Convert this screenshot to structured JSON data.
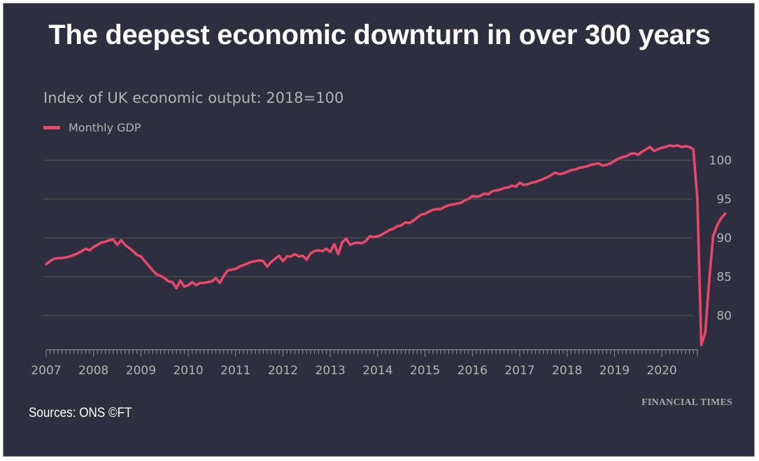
{
  "page": {
    "headline": "The deepest economic downturn in over 300 years",
    "source": "Sources: ONS ©FT",
    "brand": "FINANCIAL TIMES"
  },
  "chart_data": {
    "type": "line",
    "title": "Index of UK economic output: 2018=100",
    "xlabel": "",
    "ylabel": "",
    "legend": {
      "position": "top-left",
      "entries": [
        "Monthly GDP"
      ]
    },
    "colors": {
      "background": "#2e2e41",
      "line": "#e8486a",
      "grid": "#4a5250",
      "text": "#b3b3b6"
    },
    "grid": true,
    "x_start": "2007-01",
    "x_frequency": "monthly",
    "x_ticks": [
      "2007",
      "2008",
      "2009",
      "2010",
      "2011",
      "2012",
      "2013",
      "2014",
      "2015",
      "2016",
      "2017",
      "2018",
      "2019",
      "2020"
    ],
    "y_ticks": [
      "80",
      "85",
      "90",
      "95",
      "100"
    ],
    "ylim": [
      76,
      103
    ],
    "xlim": [
      "2007-01",
      "2020-10"
    ],
    "series": [
      {
        "name": "Monthly GDP",
        "values": [
          86.6,
          87.0,
          87.3,
          87.4,
          87.4,
          87.5,
          87.6,
          87.8,
          88.0,
          88.3,
          88.6,
          88.4,
          88.8,
          89.1,
          89.4,
          89.5,
          89.7,
          89.8,
          89.1,
          89.7,
          89.1,
          88.7,
          88.3,
          87.8,
          87.6,
          87.0,
          86.4,
          85.8,
          85.3,
          85.1,
          84.8,
          84.4,
          84.3,
          83.5,
          84.5,
          83.7,
          83.9,
          84.3,
          83.9,
          84.2,
          84.2,
          84.3,
          84.4,
          84.8,
          84.2,
          85.1,
          85.8,
          85.9,
          86.0,
          86.3,
          86.5,
          86.7,
          86.9,
          87.0,
          87.1,
          87.0,
          86.3,
          86.9,
          87.3,
          87.7,
          87.0,
          87.6,
          87.6,
          87.9,
          87.6,
          87.7,
          87.2,
          88.0,
          88.3,
          88.4,
          88.3,
          88.6,
          88.2,
          89.2,
          87.9,
          89.4,
          89.9,
          89.1,
          89.3,
          89.4,
          89.3,
          89.6,
          90.2,
          90.1,
          90.2,
          90.4,
          90.7,
          91.0,
          91.2,
          91.5,
          91.6,
          92.0,
          91.9,
          92.2,
          92.6,
          93.0,
          93.1,
          93.4,
          93.6,
          93.7,
          93.7,
          94.0,
          94.2,
          94.3,
          94.4,
          94.5,
          94.8,
          95.0,
          95.4,
          95.3,
          95.4,
          95.7,
          95.6,
          96.0,
          96.1,
          96.2,
          96.4,
          96.5,
          96.7,
          96.6,
          97.1,
          96.8,
          96.9,
          97.1,
          97.2,
          97.4,
          97.6,
          97.8,
          98.1,
          98.4,
          98.2,
          98.3,
          98.5,
          98.7,
          98.8,
          99.0,
          99.1,
          99.2,
          99.4,
          99.5,
          99.6,
          99.3,
          99.4,
          99.6,
          99.9,
          100.2,
          100.4,
          100.5,
          100.8,
          100.9,
          100.7,
          101.1,
          101.4,
          101.7,
          101.2,
          101.4,
          101.6,
          101.7,
          101.9,
          101.8,
          101.9,
          101.7,
          101.8,
          101.7,
          101.4,
          95.0,
          76.2,
          77.8,
          84.5,
          90.2,
          91.6,
          92.5,
          93.1
        ]
      }
    ]
  }
}
